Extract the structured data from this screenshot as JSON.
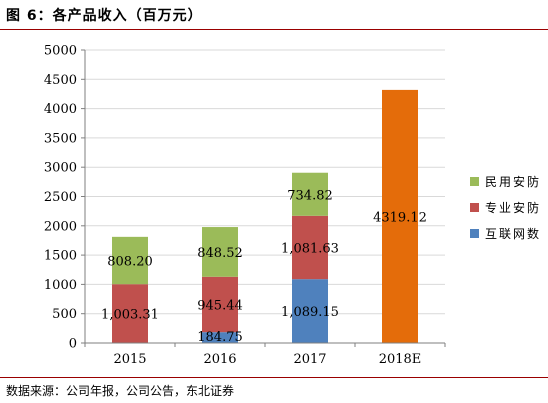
{
  "header": {
    "title": "图 6：各产品收入（百万元）"
  },
  "footer": {
    "source": "数据来源：公司年报，公司公告，东北证券"
  },
  "chart_data": {
    "type": "bar",
    "stacked": true,
    "title": "",
    "xlabel": "",
    "ylabel": "",
    "categories": [
      "2015",
      "2016",
      "2017",
      "2018E"
    ],
    "ylim": [
      0,
      5000
    ],
    "yticks": [
      0,
      500,
      1000,
      1500,
      2000,
      2500,
      3000,
      3500,
      4000,
      4500,
      5000
    ],
    "grid": true,
    "legend_position": "right",
    "series": [
      {
        "name": "互联网数",
        "color": "#4f81bd",
        "values": [
          0,
          184.75,
          1089.15,
          null
        ],
        "labels": [
          "",
          "184.75",
          "1,089.15",
          ""
        ]
      },
      {
        "name": "专业安防",
        "color": "#c0504d",
        "values": [
          1003.31,
          945.44,
          1081.63,
          null
        ],
        "labels": [
          "1,003.31",
          "945.44",
          "1,081.63",
          ""
        ]
      },
      {
        "name": "民用安防",
        "color": "#9bbb59",
        "values": [
          808.2,
          848.52,
          734.82,
          null
        ],
        "labels": [
          "808.20",
          "848.52",
          "734.82",
          ""
        ]
      }
    ],
    "totals": [
      {
        "category": "2018E",
        "value": 4319.12,
        "label": "4319.12",
        "color": "#e46c0a"
      }
    ]
  }
}
